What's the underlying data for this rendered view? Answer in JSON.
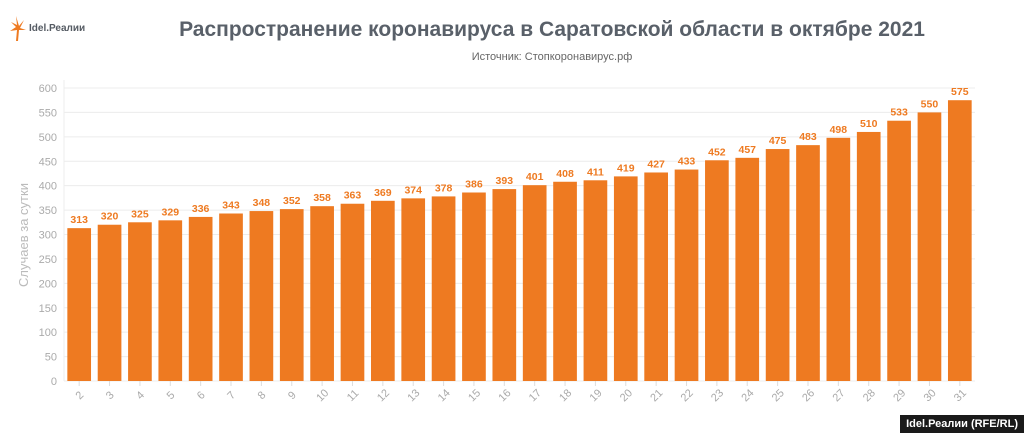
{
  "logo": {
    "text": "Idel.Реалии"
  },
  "credit": "Idel.Реалии (RFE/RL)",
  "chart_data": {
    "type": "bar",
    "title": "Распространение коронавируса в Саратовской области в октябре 2021",
    "subtitle": "Источник: Стопкоронавирус.рф",
    "xlabel": "",
    "ylabel": "Случаев за сутки",
    "ylim": [
      0,
      600
    ],
    "yticks": [
      0,
      50,
      100,
      150,
      200,
      250,
      300,
      350,
      400,
      450,
      500,
      550,
      600
    ],
    "grid": true,
    "bar_color": "#ee7a21",
    "label_color": "#ee7a21",
    "categories": [
      "2",
      "3",
      "4",
      "5",
      "6",
      "7",
      "8",
      "9",
      "10",
      "11",
      "12",
      "13",
      "14",
      "15",
      "16",
      "17",
      "18",
      "19",
      "20",
      "21",
      "22",
      "23",
      "24",
      "25",
      "26",
      "27",
      "28",
      "29",
      "30",
      "31"
    ],
    "values": [
      313,
      320,
      325,
      329,
      336,
      343,
      348,
      352,
      358,
      363,
      369,
      374,
      378,
      386,
      393,
      401,
      408,
      411,
      419,
      427,
      433,
      452,
      457,
      475,
      483,
      498,
      510,
      533,
      550,
      575
    ]
  }
}
